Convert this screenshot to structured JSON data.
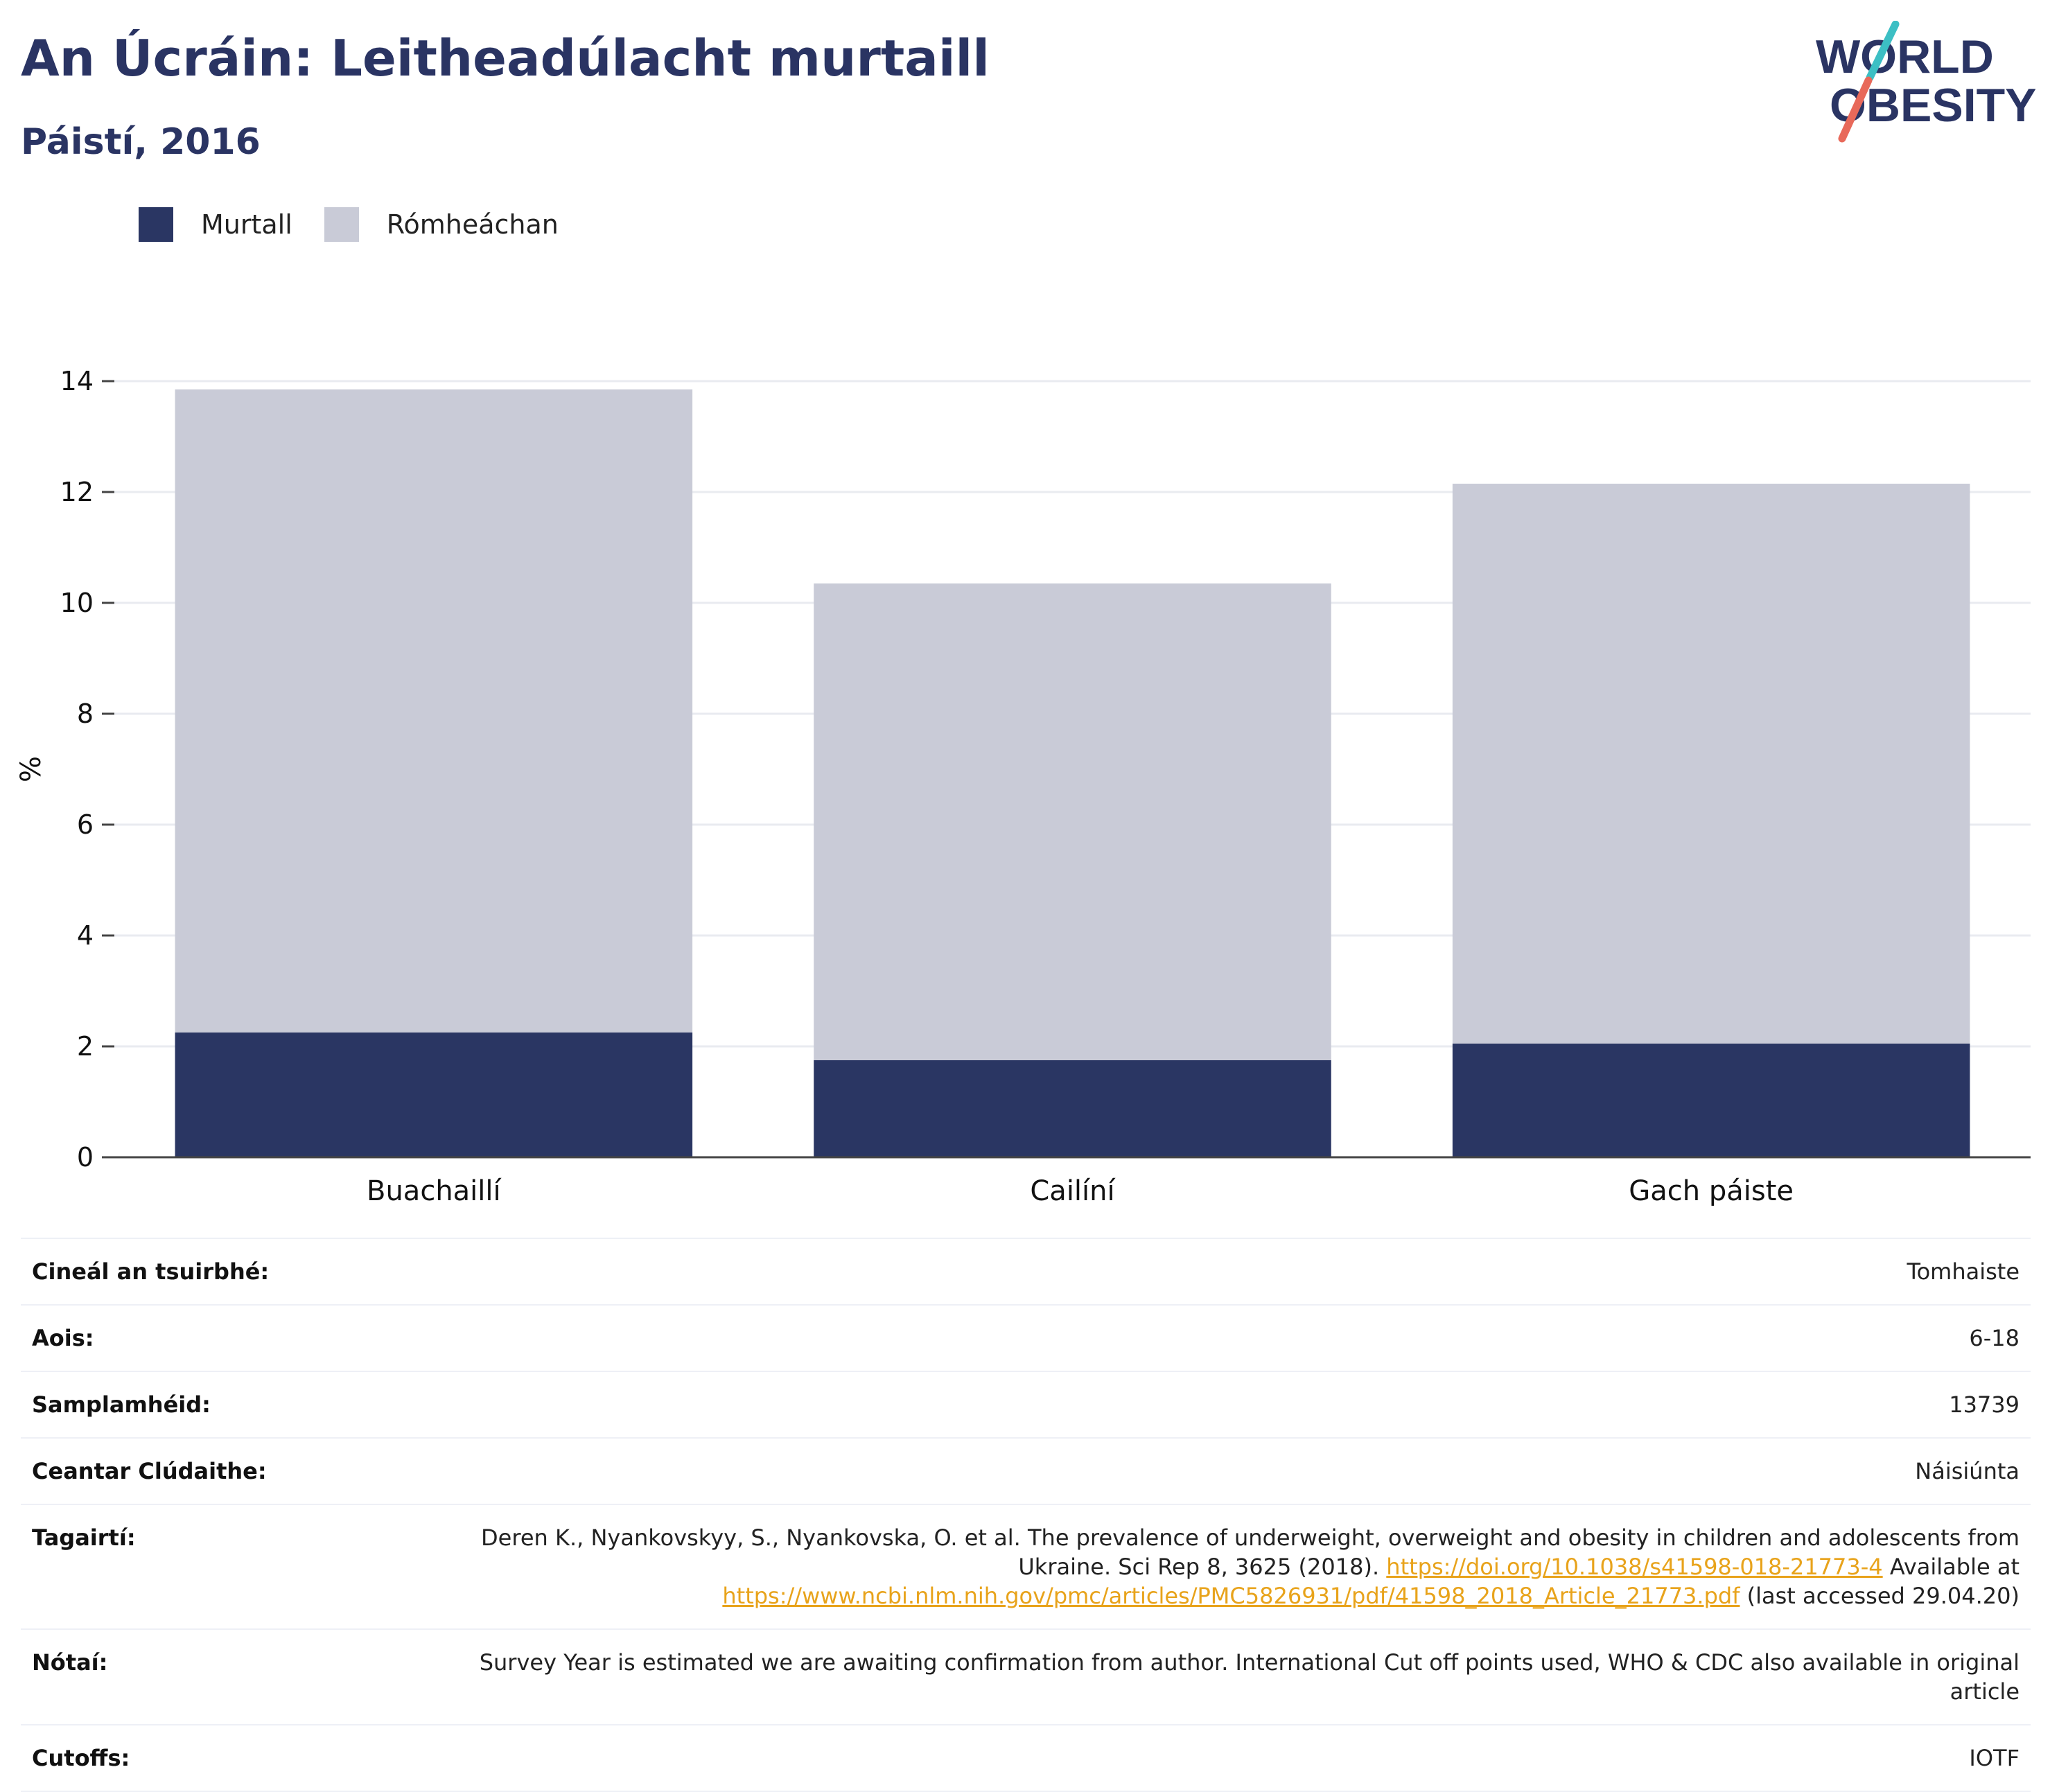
{
  "header": {
    "title": "An Úcráin: Leitheadúlacht murtaill",
    "subtitle": "Páistí, 2016"
  },
  "logo": {
    "line1": "WORLD",
    "line2": "OBESITY",
    "colors": {
      "text": "#2a3463",
      "slash_top": "#3cbfc4",
      "slash_bottom": "#e8695a"
    }
  },
  "legend": [
    {
      "label": "Murtall",
      "color": "#2a3663"
    },
    {
      "label": "Rómheáchan",
      "color": "#c9cbd7"
    }
  ],
  "chart_data": {
    "type": "bar",
    "stacked": true,
    "categories": [
      "Buachaillí",
      "Cailíní",
      "Gach páiste"
    ],
    "series": [
      {
        "name": "Murtall",
        "values": [
          2.25,
          1.75,
          2.05
        ],
        "color": "#2a3663"
      },
      {
        "name": "Rómheáchan",
        "values": [
          11.6,
          8.6,
          10.1
        ],
        "color": "#c9cbd7"
      }
    ],
    "ylabel": "%",
    "ylim": [
      0,
      14
    ],
    "yticks": [
      0,
      2,
      4,
      6,
      8,
      10,
      12,
      14
    ],
    "grid": true,
    "legend_position": "top-left"
  },
  "info": {
    "rows": [
      {
        "key": "Cineál an tsuirbhé:",
        "value": "Tomhaiste"
      },
      {
        "key": "Aois:",
        "value": "6-18"
      },
      {
        "key": "Samplamhéid:",
        "value": "13739"
      },
      {
        "key": "Ceantar Clúdaithe:",
        "value": "Náisiúnta"
      }
    ],
    "references": {
      "key": "Tagairtí:",
      "text1": "Deren K., Nyankovskyy, S., Nyankovska, O. et al. The prevalence of underweight, overweight and obesity in children and adolescents from Ukraine. Sci Rep 8, 3625 (2018).",
      "link1": "https://doi.org/10.1038/s41598-018-21773-4",
      "text2": "Available at",
      "link2": "https://www.ncbi.nlm.nih.gov/pmc/articles/PMC5826931/pdf/41598_2018_Article_21773.pdf",
      "text3": "(last accessed 29.04.20)"
    },
    "notes": {
      "key": "Nótaí:",
      "value": "Survey Year is estimated we are awaiting confirmation from author. International Cut off points used, WHO & CDC also available in original article"
    },
    "cutoffs": {
      "key": "Cutoffs:",
      "value": "IOTF"
    }
  }
}
